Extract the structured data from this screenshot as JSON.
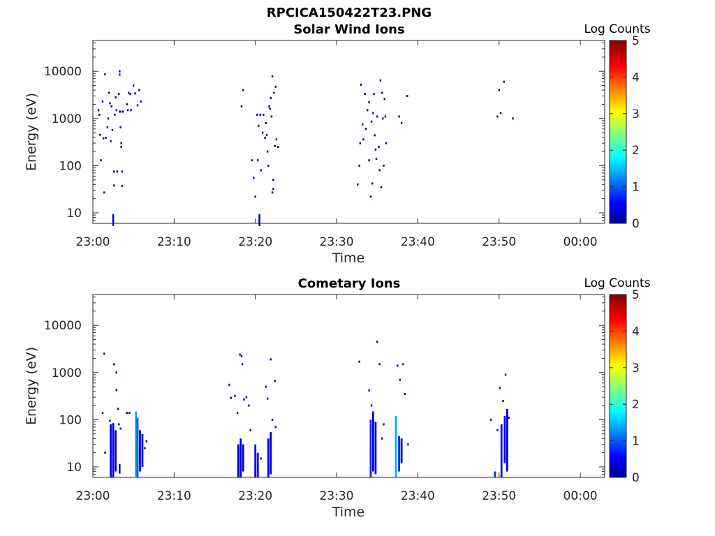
{
  "figure_title": "RPCICA150422T23.PNG",
  "chart_data": [
    {
      "type": "heatmap",
      "title": "Solar Wind Ions",
      "xlabel": "Time",
      "ylabel": "Energy (eV)",
      "x_ticks": [
        "23:00",
        "23:10",
        "23:20",
        "23:30",
        "23:40",
        "23:50",
        "00:00"
      ],
      "y_ticks": [
        "10",
        "100",
        "1000",
        "10000"
      ],
      "y_scale": "log",
      "ylim": [
        6,
        45000
      ],
      "xlim_minutes": [
        0,
        63
      ],
      "colorbar": {
        "label": "Log Counts",
        "ticks": [
          "0",
          "1",
          "2",
          "3",
          "4",
          "5"
        ],
        "range": [
          0,
          5
        ],
        "colormap": "jet"
      },
      "points": [
        [
          0.7,
          1500,
          0.3
        ],
        [
          0.8,
          1200,
          0.3
        ],
        [
          0.9,
          450,
          0.3
        ],
        [
          1.0,
          130,
          0.3
        ],
        [
          1.2,
          2300,
          0.3
        ],
        [
          1.3,
          380,
          0.3
        ],
        [
          1.4,
          27,
          0.3
        ],
        [
          1.5,
          8600,
          0.3
        ],
        [
          1.6,
          390,
          0.3
        ],
        [
          1.8,
          650,
          0.3
        ],
        [
          1.9,
          1000,
          0.3
        ],
        [
          2.0,
          3500,
          0.3
        ],
        [
          2.1,
          2100,
          0.3
        ],
        [
          2.2,
          330,
          0.3
        ],
        [
          2.3,
          1800,
          0.3
        ],
        [
          2.4,
          570,
          0.3
        ],
        [
          2.5,
          8,
          0.5
        ],
        [
          2.5,
          9,
          0.5
        ],
        [
          2.6,
          38,
          0.3
        ],
        [
          2.6,
          75,
          0.3
        ],
        [
          2.7,
          1200,
          0.3
        ],
        [
          2.8,
          2800,
          0.3
        ],
        [
          2.9,
          1500,
          0.3
        ],
        [
          3.0,
          75,
          0.3
        ],
        [
          3.2,
          3300,
          0.3
        ],
        [
          3.3,
          10000,
          0.3
        ],
        [
          3.3,
          8500,
          0.3
        ],
        [
          3.3,
          1400,
          0.3
        ],
        [
          3.4,
          650,
          0.3
        ],
        [
          3.4,
          1400,
          0.3
        ],
        [
          3.5,
          250,
          0.3
        ],
        [
          3.5,
          300,
          0.3
        ],
        [
          3.6,
          75,
          0.3
        ],
        [
          3.6,
          37,
          0.3
        ],
        [
          3.7,
          1400,
          0.3
        ],
        [
          4.2,
          2000,
          0.3
        ],
        [
          4.3,
          1500,
          0.3
        ],
        [
          4.4,
          3500,
          0.3
        ],
        [
          4.6,
          3300,
          0.3
        ],
        [
          4.7,
          1500,
          0.3
        ],
        [
          5.0,
          5000,
          0.3
        ],
        [
          5.2,
          3400,
          0.3
        ],
        [
          5.5,
          1900,
          0.3
        ],
        [
          5.7,
          4000,
          0.3
        ],
        [
          5.9,
          2300,
          0.3
        ],
        [
          18.3,
          1800,
          0.3
        ],
        [
          18.5,
          4000,
          0.3
        ],
        [
          19.6,
          130,
          0.3
        ],
        [
          19.8,
          55,
          0.3
        ],
        [
          20.0,
          22,
          0.3
        ],
        [
          20.2,
          1200,
          0.4
        ],
        [
          20.3,
          130,
          0.3
        ],
        [
          20.4,
          700,
          0.3
        ],
        [
          20.5,
          8,
          0.5
        ],
        [
          20.5,
          9,
          0.5
        ],
        [
          20.6,
          1200,
          0.4
        ],
        [
          20.7,
          80,
          0.3
        ],
        [
          20.9,
          500,
          0.3
        ],
        [
          21.0,
          1200,
          0.4
        ],
        [
          21.2,
          390,
          0.3
        ],
        [
          21.3,
          800,
          0.3
        ],
        [
          21.4,
          450,
          0.3
        ],
        [
          21.5,
          200,
          0.3
        ],
        [
          21.6,
          100,
          0.3
        ],
        [
          21.7,
          1800,
          0.3
        ],
        [
          21.8,
          1600,
          0.3
        ],
        [
          21.9,
          2700,
          0.3
        ],
        [
          22.0,
          1100,
          0.3
        ],
        [
          22.1,
          7800,
          0.3
        ],
        [
          22.1,
          27,
          0.3
        ],
        [
          22.2,
          32,
          0.3
        ],
        [
          22.2,
          50,
          0.3
        ],
        [
          22.3,
          3500,
          0.3
        ],
        [
          22.4,
          260,
          0.3
        ],
        [
          22.5,
          4700,
          0.3
        ],
        [
          22.6,
          360,
          0.3
        ],
        [
          22.8,
          250,
          0.3
        ],
        [
          32.6,
          40,
          0.3
        ],
        [
          32.8,
          100,
          0.3
        ],
        [
          32.9,
          300,
          0.3
        ],
        [
          33.0,
          5200,
          0.3
        ],
        [
          33.2,
          750,
          0.3
        ],
        [
          33.3,
          360,
          0.3
        ],
        [
          33.5,
          3300,
          0.3
        ],
        [
          33.6,
          600,
          0.3
        ],
        [
          33.8,
          1500,
          0.3
        ],
        [
          34.0,
          2200,
          0.3
        ],
        [
          34.0,
          130,
          0.3
        ],
        [
          34.2,
          22,
          0.3
        ],
        [
          34.3,
          860,
          0.3
        ],
        [
          34.4,
          42,
          0.3
        ],
        [
          34.5,
          1300,
          0.3
        ],
        [
          34.6,
          3300,
          0.3
        ],
        [
          34.7,
          440,
          0.3
        ],
        [
          34.8,
          220,
          0.3
        ],
        [
          34.9,
          140,
          0.3
        ],
        [
          35.0,
          1100,
          0.3
        ],
        [
          35.2,
          250,
          0.3
        ],
        [
          35.3,
          80,
          0.3
        ],
        [
          35.4,
          6400,
          0.3
        ],
        [
          35.5,
          35,
          0.3
        ],
        [
          35.6,
          3500,
          0.3
        ],
        [
          35.7,
          1000,
          0.3
        ],
        [
          35.8,
          100,
          0.3
        ],
        [
          35.9,
          2600,
          0.3
        ],
        [
          36.0,
          1100,
          0.3
        ],
        [
          36.1,
          300,
          0.3
        ],
        [
          37.7,
          1100,
          0.3
        ],
        [
          38.0,
          800,
          0.3
        ],
        [
          38.7,
          3000,
          0.3
        ],
        [
          49.8,
          1100,
          0.3
        ],
        [
          50.0,
          4000,
          0.3
        ],
        [
          50.2,
          1300,
          0.3
        ],
        [
          50.6,
          6000,
          0.3
        ],
        [
          51.7,
          1000,
          0.3
        ]
      ]
    },
    {
      "type": "heatmap",
      "title": "Cometary Ions",
      "xlabel": "Time",
      "ylabel": "Energy (eV)",
      "x_ticks": [
        "23:00",
        "23:10",
        "23:20",
        "23:30",
        "23:40",
        "23:50",
        "00:00"
      ],
      "y_ticks": [
        "10",
        "100",
        "1000",
        "10000"
      ],
      "y_scale": "log",
      "ylim": [
        6,
        45000
      ],
      "xlim_minutes": [
        0,
        63
      ],
      "colorbar": {
        "label": "Log Counts",
        "ticks": [
          "0",
          "1",
          "2",
          "3",
          "4",
          "5"
        ],
        "range": [
          0,
          5
        ],
        "colormap": "jet"
      },
      "bars": [
        [
          2.2,
          6,
          80,
          0.6
        ],
        [
          2.5,
          6,
          85,
          0.5
        ],
        [
          2.8,
          8,
          60,
          0.4
        ],
        [
          5.3,
          6,
          150,
          1.5
        ],
        [
          5.5,
          6,
          110,
          1.0
        ],
        [
          5.8,
          8,
          60,
          0.5
        ],
        [
          6.1,
          10,
          50,
          0.4
        ],
        [
          17.9,
          6,
          30,
          0.5
        ],
        [
          18.2,
          6,
          40,
          0.5
        ],
        [
          18.5,
          8,
          30,
          0.4
        ],
        [
          20.0,
          6,
          30,
          0.6
        ],
        [
          20.3,
          6,
          20,
          0.5
        ],
        [
          21.6,
          6,
          40,
          0.6
        ],
        [
          21.9,
          7,
          55,
          0.5
        ],
        [
          34.2,
          6,
          100,
          0.8
        ],
        [
          34.5,
          8,
          150,
          0.6
        ],
        [
          34.8,
          7,
          90,
          0.5
        ],
        [
          37.3,
          6,
          120,
          1.5
        ],
        [
          37.7,
          8,
          45,
          0.8
        ],
        [
          38.0,
          12,
          40,
          0.5
        ],
        [
          49.5,
          6,
          8,
          0.8
        ],
        [
          50.3,
          6,
          80,
          0.7
        ],
        [
          50.7,
          12,
          120,
          0.6
        ],
        [
          51.0,
          8,
          170,
          0.5
        ]
      ],
      "points": [
        [
          1.2,
          140,
          0.3
        ],
        [
          1.4,
          2500,
          0.3
        ],
        [
          1.5,
          20,
          0.3
        ],
        [
          2.1,
          95,
          0.3
        ],
        [
          2.6,
          1500,
          0.3
        ],
        [
          2.9,
          1000,
          0.3
        ],
        [
          2.9,
          430,
          0.3
        ],
        [
          3.1,
          170,
          0.3
        ],
        [
          3.2,
          80,
          0.3
        ],
        [
          3.3,
          11,
          0.5
        ],
        [
          3.4,
          65,
          0.3
        ],
        [
          4.2,
          140,
          0.3
        ],
        [
          4.5,
          140,
          0.3
        ],
        [
          6.4,
          25,
          0.3
        ],
        [
          6.6,
          35,
          0.3
        ],
        [
          16.8,
          550,
          0.3
        ],
        [
          17.0,
          290,
          0.3
        ],
        [
          17.5,
          320,
          0.3
        ],
        [
          17.8,
          140,
          0.3
        ],
        [
          18.1,
          2400,
          0.3
        ],
        [
          18.3,
          2200,
          0.3
        ],
        [
          18.4,
          1500,
          0.3
        ],
        [
          18.6,
          270,
          0.3
        ],
        [
          18.9,
          300,
          0.3
        ],
        [
          19.2,
          200,
          0.3
        ],
        [
          19.4,
          60,
          0.3
        ],
        [
          20.7,
          15,
          0.4
        ],
        [
          21.3,
          500,
          0.3
        ],
        [
          21.5,
          280,
          0.3
        ],
        [
          21.9,
          1900,
          0.3
        ],
        [
          22.1,
          100,
          0.3
        ],
        [
          22.4,
          660,
          0.3
        ],
        [
          22.5,
          70,
          0.3
        ],
        [
          32.8,
          1700,
          0.3
        ],
        [
          34.0,
          420,
          0.3
        ],
        [
          34.3,
          200,
          0.3
        ],
        [
          35.0,
          4500,
          0.3
        ],
        [
          35.3,
          1500,
          0.3
        ],
        [
          35.6,
          40,
          0.3
        ],
        [
          35.8,
          80,
          0.3
        ],
        [
          37.5,
          1400,
          0.3
        ],
        [
          37.8,
          700,
          0.3
        ],
        [
          38.2,
          1500,
          0.3
        ],
        [
          38.4,
          350,
          0.3
        ],
        [
          38.8,
          30,
          0.3
        ],
        [
          49.0,
          100,
          0.3
        ],
        [
          49.8,
          60,
          0.3
        ],
        [
          50.1,
          470,
          0.3
        ],
        [
          50.5,
          250,
          0.3
        ],
        [
          50.8,
          900,
          0.3
        ],
        [
          51.2,
          110,
          0.3
        ]
      ]
    }
  ]
}
